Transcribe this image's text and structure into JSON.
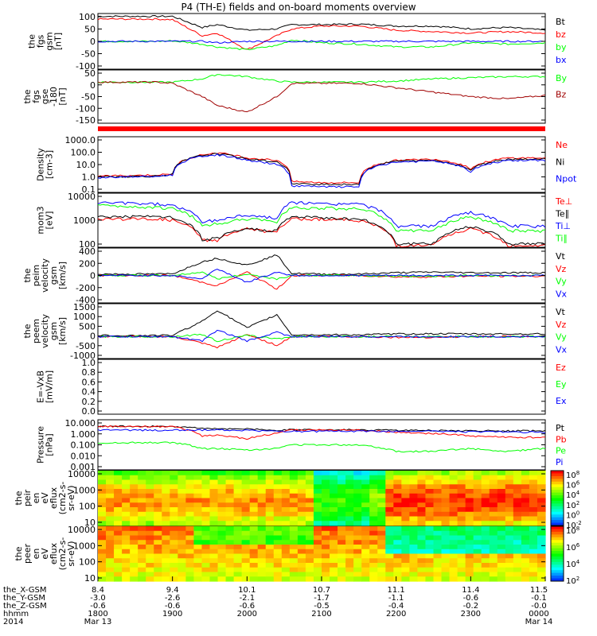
{
  "title": "P4 (TH-E) fields and on-board moments overview",
  "colors": {
    "black": "#000000",
    "red": "#ff0000",
    "green": "#00ff00",
    "blue": "#0000ff",
    "darkred": "#a00000"
  },
  "panels": [
    {
      "ylabel": [
        "the",
        "fgs",
        "gsm",
        "[nT]"
      ],
      "ticks": [
        "100",
        "50",
        "0",
        "-50",
        "-100"
      ],
      "legend": [
        {
          "text": "Bt",
          "color": "black"
        },
        {
          "text": "bz",
          "color": "red"
        },
        {
          "text": "by",
          "color": "green"
        },
        {
          "text": "bx",
          "color": "blue"
        }
      ]
    },
    {
      "ylabel": [
        "the",
        "fgs",
        "gse",
        "-180",
        "[nT]"
      ],
      "ticks": [
        "50",
        "0",
        "-50",
        "-100",
        "-150"
      ],
      "legend": [
        {
          "text": "By",
          "color": "green"
        },
        {
          "text": "Bz",
          "color": "darkred"
        }
      ]
    },
    {
      "ylabel": [
        "Density",
        "[cm-3]"
      ],
      "ticks": [
        "1000.0",
        "100.0",
        "10.0",
        "1.0",
        "0.1"
      ],
      "legend": [
        {
          "text": "Ne",
          "color": "red"
        },
        {
          "text": "Ni",
          "color": "black"
        },
        {
          "text": "Npot",
          "color": "blue"
        }
      ]
    },
    {
      "ylabel": [
        "mom3",
        "[eV]"
      ],
      "ticks": [
        "10000",
        "1000",
        "100"
      ],
      "legend": [
        {
          "text": "Te⊥",
          "color": "red"
        },
        {
          "text": "Te∥",
          "color": "black"
        },
        {
          "text": "Ti⊥",
          "color": "blue"
        },
        {
          "text": "Ti∥",
          "color": "green"
        }
      ]
    },
    {
      "ylabel": [
        "the",
        "peim",
        "velocity",
        "gsm",
        "[km/s]"
      ],
      "ticks": [
        "400",
        "200",
        "0",
        "-200",
        "-400"
      ],
      "legend": [
        {
          "text": "Vt",
          "color": "black"
        },
        {
          "text": "Vz",
          "color": "red"
        },
        {
          "text": "Vy",
          "color": "green"
        },
        {
          "text": "Vx",
          "color": "blue"
        }
      ]
    },
    {
      "ylabel": [
        "the",
        "peem",
        "velocity",
        "gsm",
        "[km/s]"
      ],
      "ticks": [
        "1500",
        "1000",
        "500",
        "0",
        "-500",
        "-1000"
      ],
      "legend": [
        {
          "text": "Vt",
          "color": "black"
        },
        {
          "text": "Vz",
          "color": "red"
        },
        {
          "text": "Vy",
          "color": "green"
        },
        {
          "text": "Vx",
          "color": "blue"
        }
      ]
    },
    {
      "ylabel": [
        "E=-VxB",
        "[mV/m]"
      ],
      "ticks": [
        "1.0",
        "0.8",
        "0.6",
        "0.4",
        "0.2",
        "0.0"
      ],
      "legend": [
        {
          "text": "Ez",
          "color": "red"
        },
        {
          "text": "Ey",
          "color": "green"
        },
        {
          "text": "Ex",
          "color": "blue"
        }
      ]
    },
    {
      "ylabel": [
        "Pressure",
        "[nPa]"
      ],
      "ticks": [
        "10.000",
        "1.000",
        "0.100",
        "0.010",
        "0.001"
      ],
      "legend": [
        {
          "text": "Pt",
          "color": "black"
        },
        {
          "text": "Pb",
          "color": "red"
        },
        {
          "text": "Pe",
          "color": "green"
        },
        {
          "text": "Pi",
          "color": "blue"
        }
      ]
    },
    {
      "ylabel": [
        "the",
        "peir",
        "en",
        "eV",
        "eflux",
        "(cm2-s-",
        "sr-eV)"
      ],
      "ticks": [
        "10000",
        "1000",
        "100",
        "10"
      ],
      "colorbar": [
        "10^8",
        "10^6",
        "10^4",
        "10^2",
        "10^0",
        "10^-2"
      ]
    },
    {
      "ylabel": [
        "the",
        "peer",
        "en",
        "eV",
        "eflux",
        "(cm2-s-",
        "sr-eV)"
      ],
      "ticks": [
        "10000",
        "1000",
        "100",
        "10"
      ],
      "colorbar": [
        "10^8",
        "10^6",
        "10^4",
        "10^2"
      ]
    }
  ],
  "xaxis": {
    "row_labels": [
      "the_X-GSM",
      "the_Y-GSM",
      "the_Z-GSM",
      "hhmm",
      "2014"
    ],
    "columns": [
      [
        "8.4",
        "-3.0",
        "-0.6",
        "1800",
        "Mar 13"
      ],
      [
        "9.4",
        "-2.6",
        "-0.6",
        "1900",
        ""
      ],
      [
        "10.1",
        "-2.1",
        "-0.6",
        "2000",
        ""
      ],
      [
        "10.7",
        "-1.7",
        "-0.5",
        "2100",
        ""
      ],
      [
        "11.1",
        "-1.1",
        "-0.4",
        "2200",
        ""
      ],
      [
        "11.4",
        "-0.6",
        "-0.2",
        "2300",
        ""
      ],
      [
        "11.5",
        "-0.1",
        "-0.0",
        "0000",
        "Mar 14"
      ]
    ]
  },
  "chart_data": {
    "type": "line",
    "title": "P4 (TH-E) fields and on-board moments overview",
    "x_time_range": [
      "2014-03-13 18:00",
      "2014-03-14 00:00"
    ],
    "panels": [
      {
        "name": "the_fgs_gsm",
        "ylabel": "the fgs gsm [nT]",
        "ylim": [
          -100,
          100
        ],
        "scale": "linear",
        "x_hours": [
          18.0,
          18.8,
          19.0,
          19.4,
          19.6,
          20.0,
          20.4,
          20.6,
          21.0,
          21.5,
          22.0,
          22.5,
          23.0,
          23.5,
          24.0
        ],
        "series": [
          {
            "name": "Bt",
            "values": [
              90,
              90,
              90,
              50,
              60,
              40,
              45,
              60,
              60,
              62,
              55,
              55,
              45,
              50,
              40
            ]
          },
          {
            "name": "bz",
            "values": [
              80,
              80,
              78,
              20,
              30,
              -30,
              20,
              45,
              55,
              55,
              40,
              35,
              30,
              35,
              30
            ]
          },
          {
            "name": "by",
            "values": [
              0,
              0,
              2,
              -10,
              -20,
              -30,
              -15,
              5,
              -5,
              -10,
              -20,
              -20,
              -5,
              -10,
              -5
            ]
          },
          {
            "name": "bx",
            "values": [
              0,
              0,
              0,
              0,
              -5,
              0,
              0,
              0,
              0,
              0,
              0,
              0,
              0,
              0,
              0
            ]
          }
        ]
      },
      {
        "name": "the_fgs_gse_180",
        "ylabel": "the fgs gse -180 [nT]",
        "ylim": [
          -180,
          60
        ],
        "scale": "linear",
        "x_hours": [
          18.0,
          18.8,
          19.0,
          19.4,
          19.6,
          20.0,
          20.4,
          20.6,
          21.0,
          21.5,
          22.0,
          22.5,
          23.0,
          23.5,
          24.0
        ],
        "series": [
          {
            "name": "By",
            "values": [
              5,
              5,
              5,
              20,
              40,
              30,
              10,
              5,
              5,
              5,
              10,
              20,
              25,
              30,
              30
            ]
          },
          {
            "name": "Bz",
            "values": [
              5,
              5,
              0,
              -60,
              -100,
              -130,
              -60,
              0,
              0,
              0,
              -20,
              -40,
              -60,
              -70,
              -55
            ]
          }
        ]
      },
      {
        "name": "density",
        "ylabel": "Density [cm-3]",
        "ylim": [
          0.1,
          1000
        ],
        "scale": "log",
        "x_hours": [
          18.0,
          18.8,
          19.0,
          19.4,
          19.6,
          20.0,
          20.4,
          20.6,
          21.0,
          21.5,
          22.0,
          22.5,
          23.0,
          23.5,
          24.0
        ],
        "series": [
          {
            "name": "Ne",
            "values": [
              1.5,
              1.8,
              2,
              50,
              70,
              30,
              20,
              0.6,
              0.5,
              0.5,
              20,
              25,
              5,
              30,
              30
            ]
          },
          {
            "name": "Ni",
            "values": [
              1.3,
              1.5,
              2,
              45,
              60,
              25,
              15,
              0.4,
              0.4,
              0.35,
              18,
              20,
              4,
              25,
              25
            ]
          },
          {
            "name": "Npot",
            "values": [
              1.2,
              1.4,
              1.8,
              40,
              50,
              20,
              10,
              0.3,
              0.25,
              0.25,
              15,
              18,
              3,
              20,
              20
            ]
          }
        ]
      },
      {
        "name": "mom3",
        "ylabel": "mom3 [eV]",
        "ylim": [
          50,
          10000
        ],
        "scale": "log",
        "x_hours": [
          18.0,
          18.8,
          19.0,
          19.4,
          19.6,
          20.0,
          20.4,
          20.6,
          21.0,
          21.5,
          22.0,
          22.5,
          23.0,
          23.5,
          24.0
        ],
        "series": [
          {
            "name": "Te⊥",
            "values": [
              800,
              800,
              700,
              100,
              100,
              300,
              200,
              800,
              800,
              700,
              60,
              60,
              300,
              60,
              60
            ]
          },
          {
            "name": "Te∥",
            "values": [
              1000,
              1000,
              900,
              100,
              120,
              300,
              250,
              1000,
              900,
              800,
              70,
              70,
              400,
              70,
              70
            ]
          },
          {
            "name": "Ti⊥",
            "values": [
              4000,
              3500,
              3000,
              600,
              700,
              1200,
              800,
              4000,
              3500,
              3500,
              400,
              400,
              1500,
              400,
              400
            ]
          },
          {
            "name": "Ti∥",
            "values": [
              3000,
              2500,
              2200,
              400,
              500,
              800,
              600,
              2500,
              2300,
              2200,
              250,
              250,
              1000,
              250,
              250
            ]
          }
        ]
      },
      {
        "name": "the_peim_velocity",
        "ylabel": "the peim velocity gsm [km/s]",
        "ylim": [
          -400,
          400
        ],
        "scale": "linear",
        "x_hours": [
          18.0,
          18.8,
          19.0,
          19.4,
          19.6,
          20.0,
          20.4,
          20.6,
          21.0,
          21.5,
          22.0,
          22.5,
          23.0,
          23.5,
          24.0
        ],
        "series": [
          {
            "name": "Vt",
            "values": [
              20,
              20,
              25,
              200,
              250,
              150,
              300,
              30,
              20,
              20,
              40,
              50,
              40,
              40,
              40
            ]
          },
          {
            "name": "Vz",
            "values": [
              0,
              0,
              0,
              -100,
              -150,
              50,
              -200,
              0,
              0,
              0,
              -20,
              -20,
              -10,
              -10,
              -10
            ]
          },
          {
            "name": "Vy",
            "values": [
              0,
              0,
              0,
              50,
              -50,
              20,
              -50,
              0,
              0,
              0,
              -10,
              -10,
              0,
              0,
              0
            ]
          },
          {
            "name": "Vx",
            "values": [
              0,
              0,
              0,
              -50,
              100,
              -100,
              50,
              0,
              0,
              0,
              0,
              0,
              0,
              0,
              0
            ]
          }
        ]
      },
      {
        "name": "the_peem_velocity",
        "ylabel": "the peem velocity gsm [km/s]",
        "ylim": [
          -1000,
          1500
        ],
        "scale": "linear",
        "x_hours": [
          18.0,
          18.8,
          19.0,
          19.4,
          19.6,
          20.0,
          20.4,
          20.6,
          21.0,
          21.5,
          22.0,
          22.5,
          23.0,
          23.5,
          24.0
        ],
        "series": [
          {
            "name": "Vt",
            "values": [
              50,
              50,
              60,
              700,
              1200,
              400,
              1000,
              80,
              80,
              80,
              120,
              130,
              120,
              120,
              120
            ]
          },
          {
            "name": "Vz",
            "values": [
              0,
              0,
              0,
              -300,
              -500,
              100,
              -400,
              0,
              0,
              0,
              -30,
              -30,
              0,
              0,
              0
            ]
          },
          {
            "name": "Vy",
            "values": [
              0,
              0,
              0,
              100,
              -200,
              50,
              -100,
              0,
              0,
              0,
              0,
              0,
              0,
              0,
              0
            ]
          },
          {
            "name": "Vx",
            "values": [
              0,
              0,
              0,
              -200,
              300,
              -200,
              200,
              0,
              0,
              0,
              0,
              0,
              0,
              0,
              0
            ]
          }
        ]
      },
      {
        "name": "E_minus_VxB",
        "ylabel": "E=-VxB [mV/m]",
        "ylim": [
          0,
          1
        ],
        "scale": "linear",
        "series": []
      },
      {
        "name": "pressure",
        "ylabel": "Pressure [nPa]",
        "ylim": [
          0.001,
          10
        ],
        "scale": "log",
        "x_hours": [
          18.0,
          18.8,
          19.0,
          19.4,
          19.6,
          20.0,
          20.4,
          20.6,
          21.0,
          21.5,
          22.0,
          22.5,
          23.0,
          23.5,
          24.0
        ],
        "series": [
          {
            "name": "Pt",
            "values": [
              3,
              3,
              3,
              2,
              2,
              1.8,
              1.5,
              1.6,
              1.6,
              1.6,
              1.4,
              1.4,
              1.3,
              1.3,
              1.3
            ]
          },
          {
            "name": "Pb",
            "values": [
              3,
              3,
              2.8,
              0.5,
              0.6,
              0.3,
              0.8,
              1.5,
              1.5,
              1.5,
              1.0,
              0.8,
              0.5,
              0.4,
              0.4
            ]
          },
          {
            "name": "Pe",
            "values": [
              0.15,
              0.15,
              0.15,
              0.05,
              0.05,
              0.04,
              0.05,
              0.1,
              0.1,
              0.1,
              0.03,
              0.03,
              0.05,
              0.03,
              0.05
            ]
          },
          {
            "name": "Pi",
            "values": [
              1.5,
              1.5,
              1.5,
              1.5,
              1.6,
              1.4,
              1.2,
              1.2,
              1.2,
              1.2,
              1.2,
              1.2,
              1.1,
              1.1,
              1.0
            ]
          }
        ]
      }
    ]
  }
}
